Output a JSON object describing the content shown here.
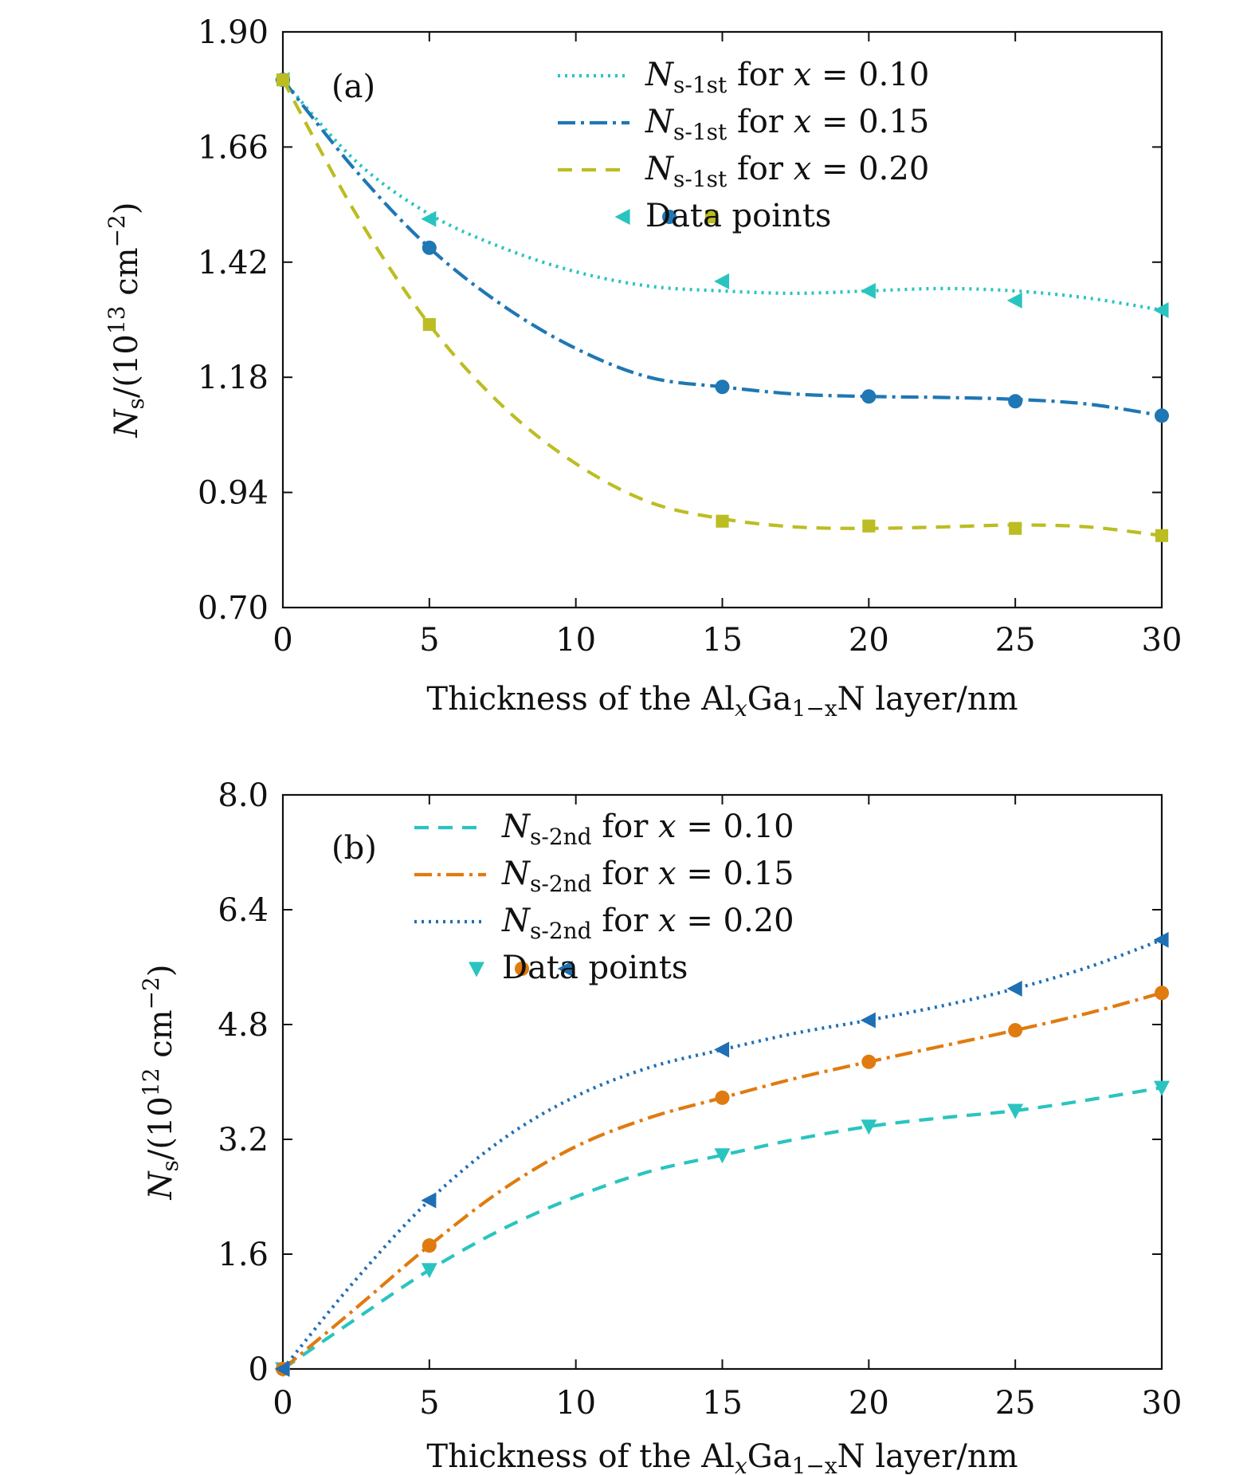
{
  "chart_data": [
    {
      "type": "line",
      "panel_label": "(a)",
      "xlabel": "Thickness of the AlxGa1−xN layer/nm",
      "xlabel_parts": {
        "pre": "Thickness of the Al",
        "sub1": "x",
        "mid": "Ga",
        "sub2": "1−x",
        "post": "N layer/nm"
      },
      "ylabel": "Ns/(10^13 cm^−2)",
      "ylabel_parts": {
        "sym": "N",
        "sub": "s",
        "pre": "/(10",
        "exp1": "13",
        "mid": " cm",
        "exp2": "−2",
        "post": ")"
      },
      "xlim": [
        0,
        30
      ],
      "ylim": [
        0.7,
        1.9
      ],
      "xticks": [
        0,
        5,
        10,
        15,
        20,
        25,
        30
      ],
      "xtick_labels": [
        "0",
        "5",
        "10",
        "15",
        "20",
        "25",
        "30"
      ],
      "yticks": [
        0.7,
        0.94,
        1.18,
        1.42,
        1.66,
        1.9
      ],
      "ytick_labels": [
        "0.70",
        "0.94",
        "1.18",
        "1.42",
        "1.66",
        "1.90"
      ],
      "legend_position": "top-right",
      "series": [
        {
          "name": "Ns-1st for x = 0.10",
          "label_sym": "N",
          "label_sub": "s-1st",
          "label_rest": "for x = 0.10",
          "color": "#2ac4c0",
          "dash": "3 6",
          "marker": "triangle-left",
          "x": [
            0,
            5,
            15,
            20,
            25,
            30
          ],
          "values": [
            1.8,
            1.51,
            1.38,
            1.36,
            1.34,
            1.32
          ],
          "curve_x": [
            0,
            2.5,
            5,
            7.5,
            10,
            12.5,
            15,
            17.5,
            20,
            22.5,
            25,
            27.5,
            30
          ],
          "curve_y": [
            1.8,
            1.63,
            1.52,
            1.45,
            1.4,
            1.37,
            1.36,
            1.355,
            1.36,
            1.365,
            1.36,
            1.345,
            1.32
          ]
        },
        {
          "name": "Ns-1st for x = 0.15",
          "label_sym": "N",
          "label_sub": "s-1st",
          "label_rest": "for x = 0.15",
          "color": "#1f77b4",
          "dash": "22 7 4 7",
          "marker": "circle",
          "x": [
            0,
            5,
            15,
            20,
            25,
            30
          ],
          "values": [
            1.8,
            1.45,
            1.16,
            1.14,
            1.13,
            1.1
          ],
          "curve_x": [
            0,
            2.5,
            5,
            7.5,
            10,
            12.5,
            15,
            17.5,
            20,
            22.5,
            25,
            27.5,
            30
          ],
          "curve_y": [
            1.8,
            1.61,
            1.45,
            1.33,
            1.24,
            1.18,
            1.16,
            1.145,
            1.14,
            1.138,
            1.134,
            1.124,
            1.1
          ]
        },
        {
          "name": "Ns-1st for x = 0.20",
          "label_sym": "N",
          "label_sub": "s-1st",
          "label_rest": "for x = 0.20",
          "color": "#bcbd22",
          "dash": "18 12",
          "marker": "square",
          "x": [
            0,
            5,
            15,
            20,
            25,
            30
          ],
          "values": [
            1.8,
            1.29,
            0.88,
            0.87,
            0.865,
            0.85
          ],
          "curve_x": [
            0,
            2.5,
            5,
            7.5,
            10,
            12.5,
            15,
            17.5,
            20,
            22.5,
            25,
            27.5,
            30
          ],
          "curve_y": [
            1.8,
            1.52,
            1.29,
            1.12,
            1.0,
            0.92,
            0.885,
            0.868,
            0.865,
            0.868,
            0.872,
            0.868,
            0.85
          ]
        }
      ],
      "data_points_label": "Data points"
    },
    {
      "type": "line",
      "panel_label": "(b)",
      "xlabel": "Thickness of the AlxGa1−xN layer/nm",
      "xlabel_parts": {
        "pre": "Thickness of the Al",
        "sub1": "x",
        "mid": "Ga",
        "sub2": "1−x",
        "post": "N layer/nm"
      },
      "ylabel": "Ns/(10^12 cm^−2)",
      "ylabel_parts": {
        "sym": "N",
        "sub": "s",
        "pre": "/(10",
        "exp1": "12",
        "mid": " cm",
        "exp2": "−2",
        "post": ")"
      },
      "xlim": [
        0,
        30
      ],
      "ylim": [
        0,
        8.0
      ],
      "xticks": [
        0,
        5,
        10,
        15,
        20,
        25,
        30
      ],
      "xtick_labels": [
        "0",
        "5",
        "10",
        "15",
        "20",
        "25",
        "30"
      ],
      "yticks": [
        0,
        1.6,
        3.2,
        4.8,
        6.4,
        8.0
      ],
      "ytick_labels": [
        "0",
        "1.6",
        "3.2",
        "4.8",
        "6.4",
        "8.0"
      ],
      "legend_position": "top-center",
      "series": [
        {
          "name": "Ns-2nd for x = 0.10",
          "label_sym": "N",
          "label_sub": "s-2nd",
          "label_rest": "for x = 0.10",
          "color": "#2ac4c0",
          "dash": "18 12",
          "marker": "triangle-down",
          "x": [
            0,
            5,
            15,
            20,
            25,
            30
          ],
          "values": [
            0,
            1.38,
            2.98,
            3.38,
            3.6,
            3.92
          ],
          "curve_x": [
            0,
            2.5,
            5,
            7.5,
            10,
            12.5,
            15,
            17.5,
            20,
            22.5,
            25,
            27.5,
            30
          ],
          "curve_y": [
            0,
            0.7,
            1.38,
            1.95,
            2.4,
            2.75,
            2.98,
            3.2,
            3.38,
            3.5,
            3.6,
            3.75,
            3.92
          ]
        },
        {
          "name": "Ns-2nd for x = 0.15",
          "label_sym": "N",
          "label_sub": "s-2nd",
          "label_rest": "for x = 0.15",
          "color": "#e07b10",
          "dash": "22 7 4 7",
          "marker": "circle",
          "x": [
            0,
            5,
            15,
            20,
            25,
            30
          ],
          "values": [
            0,
            1.72,
            3.78,
            4.28,
            4.72,
            5.24
          ],
          "curve_x": [
            0,
            2.5,
            5,
            7.5,
            10,
            12.5,
            15,
            17.5,
            20,
            22.5,
            25,
            27.5,
            30
          ],
          "curve_y": [
            0,
            0.85,
            1.72,
            2.5,
            3.1,
            3.5,
            3.78,
            4.05,
            4.28,
            4.5,
            4.72,
            4.96,
            5.24
          ]
        },
        {
          "name": "Ns-2nd for x = 0.20",
          "label_sym": "N",
          "label_sub": "s-2nd",
          "label_rest": "for x = 0.20",
          "color": "#1f6fb4",
          "dash": "3 6",
          "marker": "triangle-left",
          "x": [
            0,
            5,
            15,
            20,
            25,
            30
          ],
          "values": [
            0,
            2.35,
            4.45,
            4.86,
            5.3,
            5.98
          ],
          "curve_x": [
            0,
            2.5,
            5,
            7.5,
            10,
            12.5,
            15,
            17.5,
            20,
            22.5,
            25,
            27.5,
            30
          ],
          "curve_y": [
            0,
            1.25,
            2.35,
            3.2,
            3.8,
            4.2,
            4.45,
            4.68,
            4.86,
            5.06,
            5.3,
            5.6,
            5.98
          ]
        }
      ],
      "data_points_label": "Data points"
    }
  ]
}
